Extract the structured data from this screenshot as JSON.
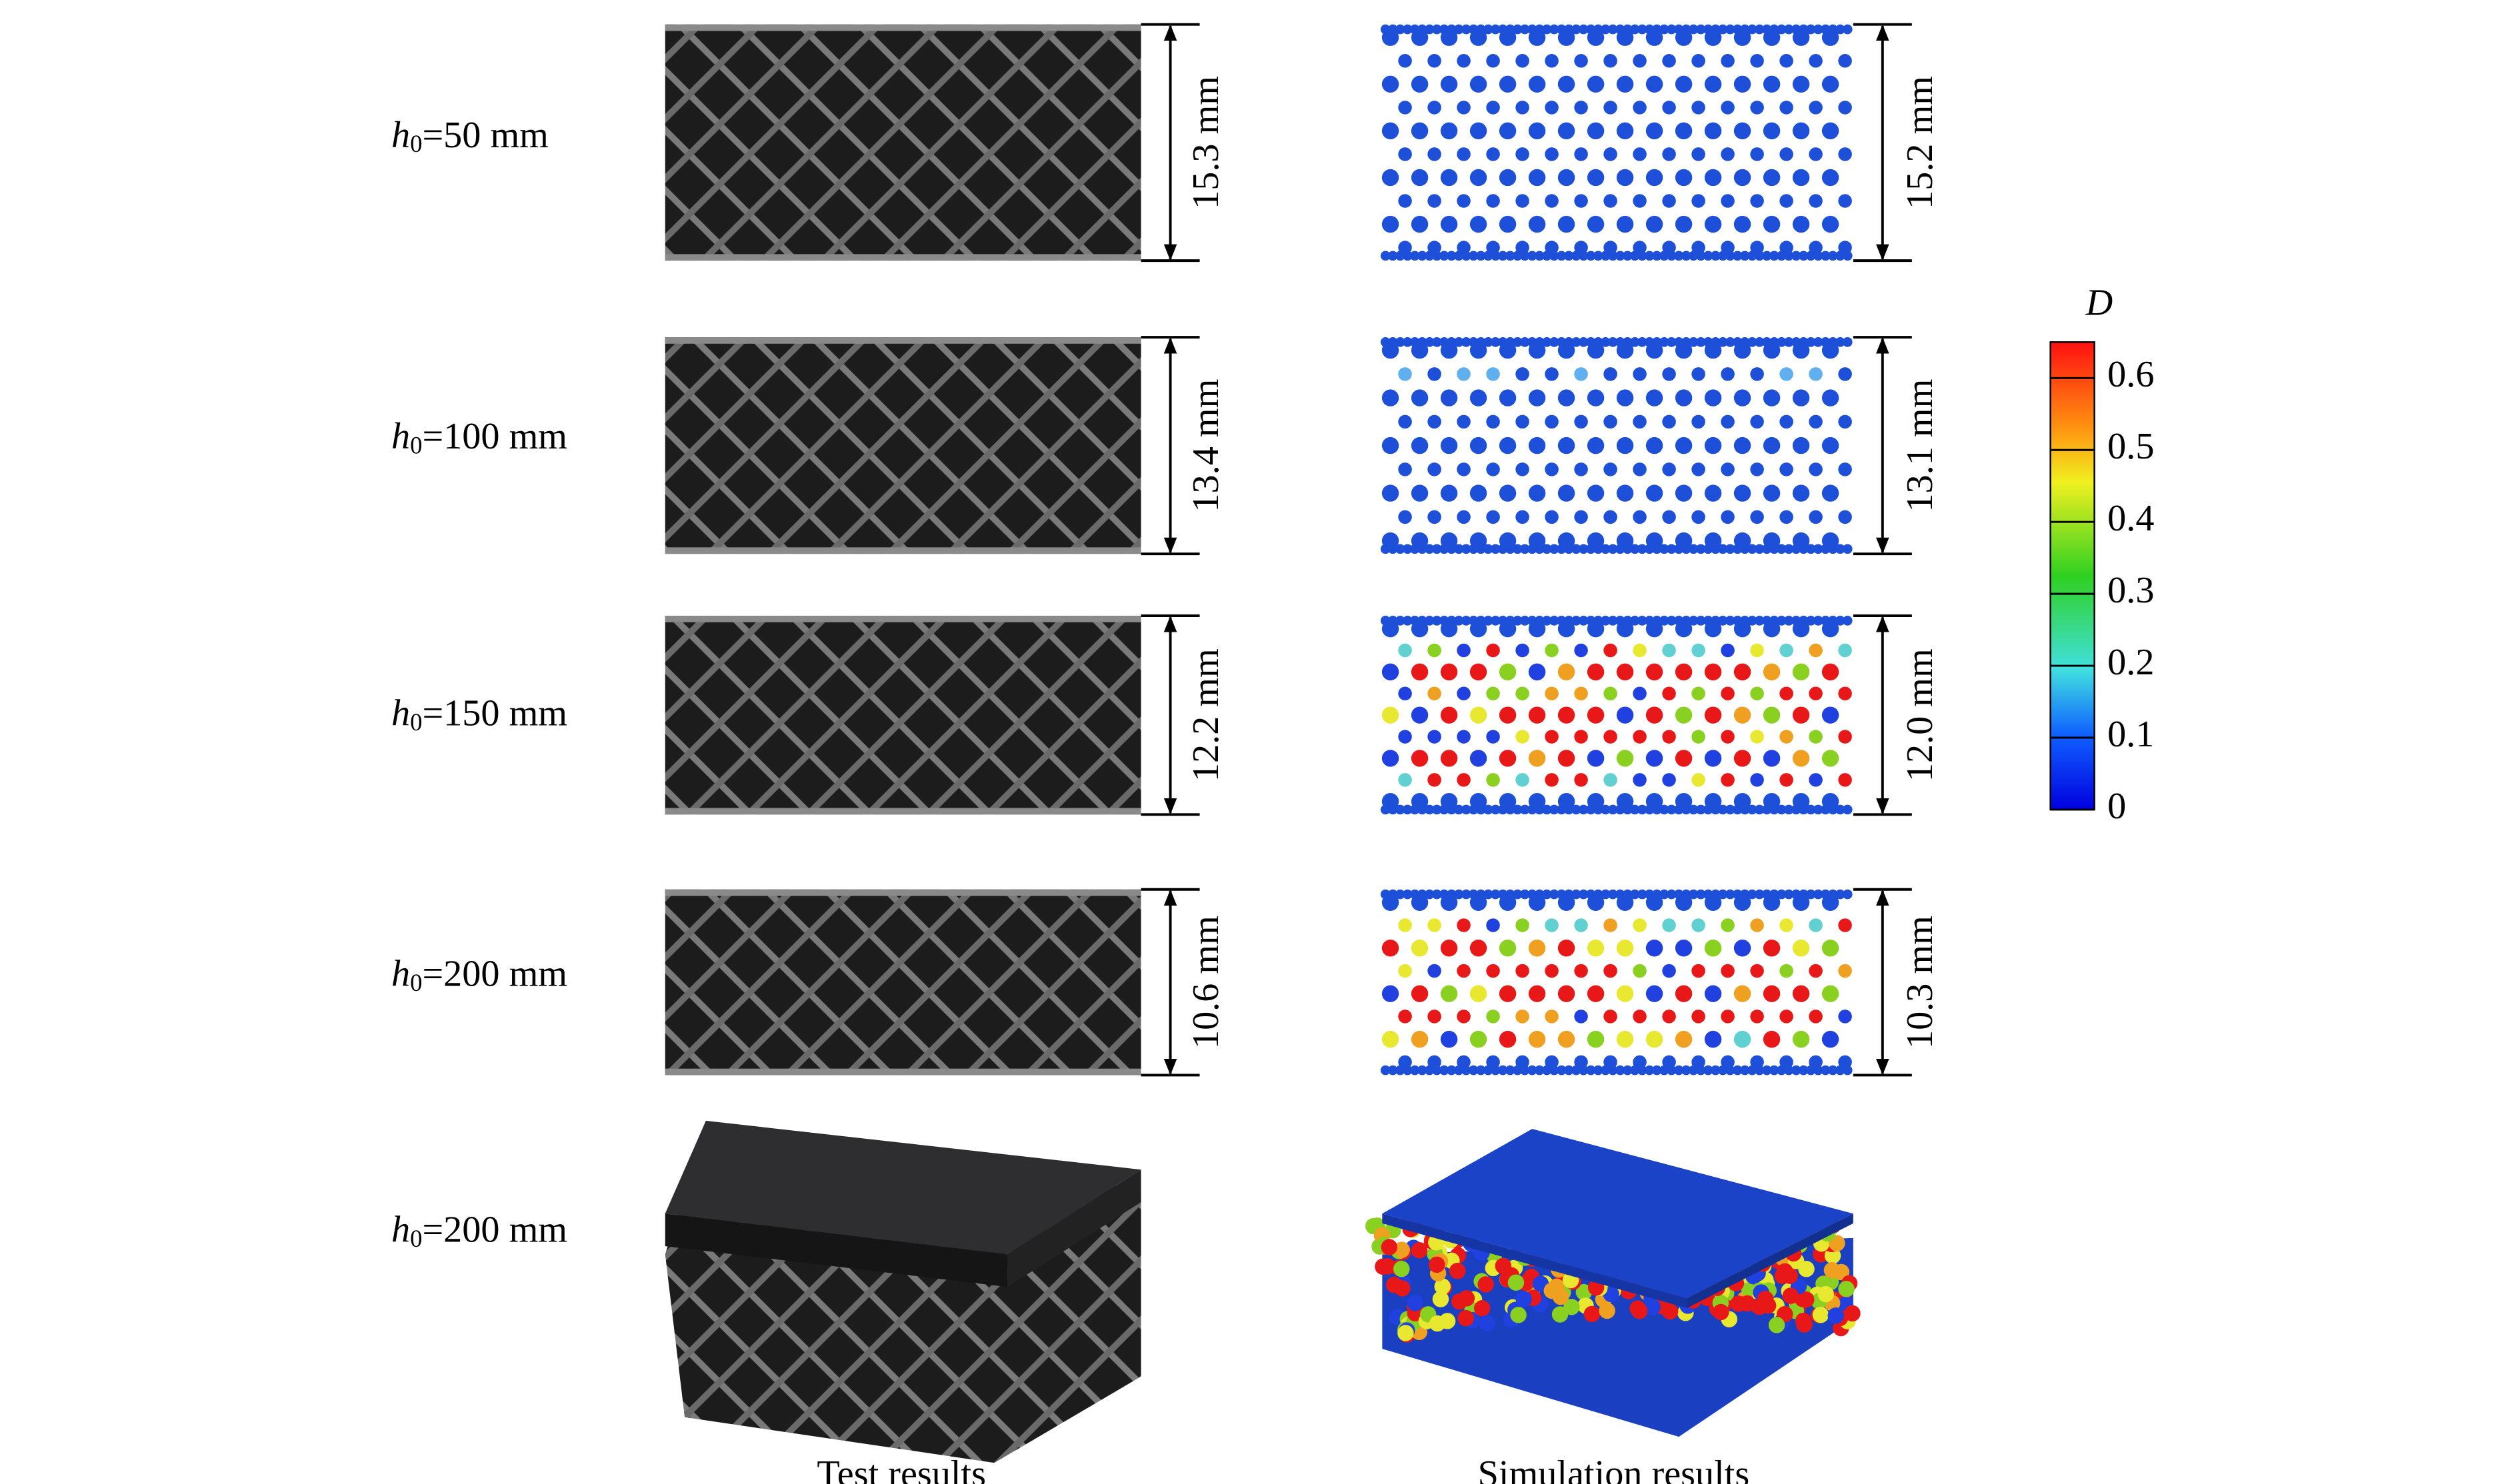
{
  "rows": [
    {
      "label": {
        "symbol": "h",
        "subscript": "0",
        "text": "=50 mm"
      },
      "test_height": "15.3 mm",
      "sim_height": "15.2 mm"
    },
    {
      "label": {
        "symbol": "h",
        "subscript": "0",
        "text": "=100 mm"
      },
      "test_height": "13.4 mm",
      "sim_height": "13.1 mm"
    },
    {
      "label": {
        "symbol": "h",
        "subscript": "0",
        "text": "=150 mm"
      },
      "test_height": "12.2 mm",
      "sim_height": "12.0 mm"
    },
    {
      "label": {
        "symbol": "h",
        "subscript": "0",
        "text": "=200 mm"
      },
      "test_height": "10.6 mm",
      "sim_height": "10.3 mm"
    },
    {
      "label": {
        "symbol": "h",
        "subscript": "0",
        "text": "=200 mm"
      }
    }
  ],
  "captions": {
    "test": "Test results",
    "simulation": "Simulation results"
  },
  "colorbar": {
    "title": "D",
    "lim": [
      0,
      0.65
    ],
    "ticks": [
      0,
      0.1,
      0.2,
      0.3,
      0.4,
      0.5,
      0.6
    ]
  }
}
